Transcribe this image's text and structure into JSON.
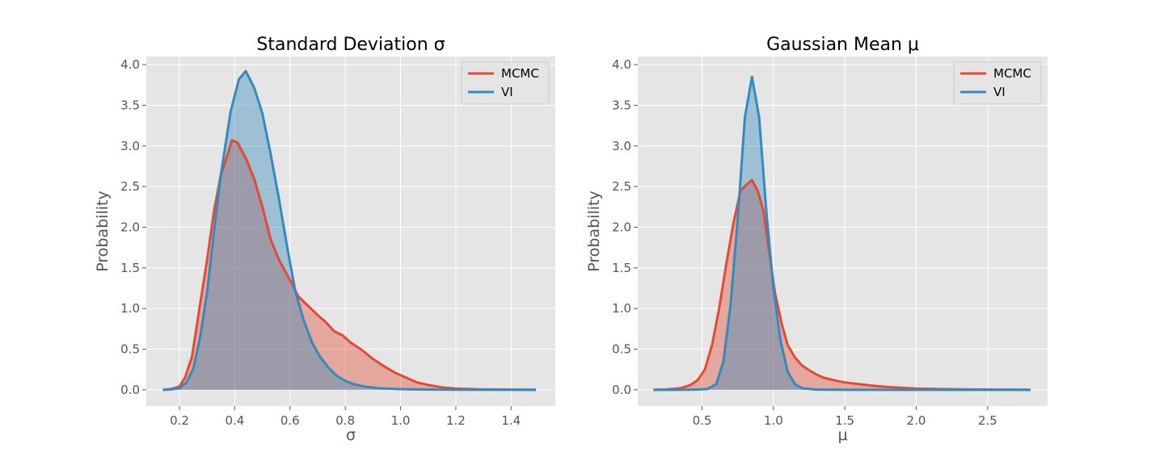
{
  "colors": {
    "mcmc": "#E24A33",
    "vi": "#348ABD",
    "plot_background": "#E5E5E5",
    "grid": "#FFFFFF"
  },
  "chart_data": [
    {
      "type": "area",
      "title": "Standard Deviation σ",
      "xlabel": "σ",
      "ylabel": "Probability",
      "xlim": [
        0.08,
        1.56
      ],
      "ylim": [
        -0.2,
        4.1
      ],
      "grid": true,
      "legend_position": "top-right",
      "x_ticks": [
        "0.2",
        "0.4",
        "0.6",
        "0.8",
        "1.0",
        "1.2",
        "1.4"
      ],
      "y_ticks": [
        "0.0",
        "0.5",
        "1.0",
        "1.5",
        "2.0",
        "2.5",
        "3.0",
        "3.5",
        "4.0"
      ],
      "series": [
        {
          "name": "MCMC",
          "color": "#E24A33",
          "points": [
            [
              0.14,
              0.0
            ],
            [
              0.17,
              0.01
            ],
            [
              0.2,
              0.04
            ],
            [
              0.22,
              0.15
            ],
            [
              0.245,
              0.4
            ],
            [
              0.27,
              0.95
            ],
            [
              0.3,
              1.6
            ],
            [
              0.325,
              2.2
            ],
            [
              0.35,
              2.65
            ],
            [
              0.375,
              2.9
            ],
            [
              0.39,
              3.07
            ],
            [
              0.41,
              3.04
            ],
            [
              0.44,
              2.85
            ],
            [
              0.47,
              2.6
            ],
            [
              0.5,
              2.25
            ],
            [
              0.53,
              1.85
            ],
            [
              0.56,
              1.6
            ],
            [
              0.6,
              1.35
            ],
            [
              0.63,
              1.15
            ],
            [
              0.66,
              1.05
            ],
            [
              0.7,
              0.92
            ],
            [
              0.73,
              0.83
            ],
            [
              0.76,
              0.72
            ],
            [
              0.79,
              0.67
            ],
            [
              0.82,
              0.58
            ],
            [
              0.86,
              0.49
            ],
            [
              0.9,
              0.38
            ],
            [
              0.94,
              0.29
            ],
            [
              0.98,
              0.21
            ],
            [
              1.02,
              0.15
            ],
            [
              1.06,
              0.09
            ],
            [
              1.1,
              0.06
            ],
            [
              1.15,
              0.03
            ],
            [
              1.2,
              0.015
            ],
            [
              1.3,
              0.005
            ],
            [
              1.4,
              0.002
            ],
            [
              1.49,
              0.0
            ]
          ]
        },
        {
          "name": "VI",
          "color": "#348ABD",
          "points": [
            [
              0.14,
              0.0
            ],
            [
              0.17,
              0.005
            ],
            [
              0.2,
              0.02
            ],
            [
              0.225,
              0.09
            ],
            [
              0.25,
              0.26
            ],
            [
              0.275,
              0.65
            ],
            [
              0.3,
              1.2
            ],
            [
              0.325,
              1.95
            ],
            [
              0.35,
              2.65
            ],
            [
              0.385,
              3.42
            ],
            [
              0.415,
              3.82
            ],
            [
              0.44,
              3.92
            ],
            [
              0.47,
              3.72
            ],
            [
              0.5,
              3.4
            ],
            [
              0.53,
              2.9
            ],
            [
              0.56,
              2.35
            ],
            [
              0.59,
              1.75
            ],
            [
              0.62,
              1.2
            ],
            [
              0.65,
              0.85
            ],
            [
              0.68,
              0.58
            ],
            [
              0.71,
              0.4
            ],
            [
              0.74,
              0.27
            ],
            [
              0.77,
              0.17
            ],
            [
              0.8,
              0.11
            ],
            [
              0.83,
              0.07
            ],
            [
              0.87,
              0.04
            ],
            [
              0.92,
              0.02
            ],
            [
              1.0,
              0.008
            ],
            [
              1.1,
              0.003
            ],
            [
              1.2,
              0.001
            ],
            [
              1.49,
              0.0
            ]
          ]
        }
      ]
    },
    {
      "type": "area",
      "title": "Gaussian Mean μ",
      "xlabel": "μ",
      "ylabel": "Probability",
      "xlim": [
        0.05,
        2.92
      ],
      "ylim": [
        -0.2,
        4.1
      ],
      "grid": true,
      "legend_position": "top-right",
      "x_ticks": [
        "0.5",
        "1.0",
        "1.5",
        "2.0",
        "2.5"
      ],
      "y_ticks": [
        "0.0",
        "0.5",
        "1.0",
        "1.5",
        "2.0",
        "2.5",
        "3.0",
        "3.5",
        "4.0"
      ],
      "series": [
        {
          "name": "MCMC",
          "color": "#E24A33",
          "points": [
            [
              0.16,
              0.0
            ],
            [
              0.25,
              0.005
            ],
            [
              0.35,
              0.02
            ],
            [
              0.42,
              0.06
            ],
            [
              0.47,
              0.12
            ],
            [
              0.52,
              0.25
            ],
            [
              0.57,
              0.55
            ],
            [
              0.62,
              1.0
            ],
            [
              0.67,
              1.55
            ],
            [
              0.72,
              2.05
            ],
            [
              0.77,
              2.45
            ],
            [
              0.81,
              2.52
            ],
            [
              0.85,
              2.58
            ],
            [
              0.89,
              2.45
            ],
            [
              0.93,
              2.2
            ],
            [
              0.97,
              1.7
            ],
            [
              1.01,
              1.2
            ],
            [
              1.06,
              0.8
            ],
            [
              1.1,
              0.55
            ],
            [
              1.15,
              0.4
            ],
            [
              1.2,
              0.3
            ],
            [
              1.25,
              0.24
            ],
            [
              1.3,
              0.19
            ],
            [
              1.35,
              0.15
            ],
            [
              1.42,
              0.12
            ],
            [
              1.5,
              0.09
            ],
            [
              1.6,
              0.07
            ],
            [
              1.7,
              0.05
            ],
            [
              1.8,
              0.035
            ],
            [
              1.9,
              0.025
            ],
            [
              2.0,
              0.015
            ],
            [
              2.2,
              0.008
            ],
            [
              2.4,
              0.004
            ],
            [
              2.6,
              0.002
            ],
            [
              2.8,
              0.0
            ]
          ]
        },
        {
          "name": "VI",
          "color": "#348ABD",
          "points": [
            [
              0.16,
              0.0
            ],
            [
              0.3,
              0.0
            ],
            [
              0.45,
              0.002
            ],
            [
              0.54,
              0.01
            ],
            [
              0.6,
              0.07
            ],
            [
              0.65,
              0.35
            ],
            [
              0.7,
              1.05
            ],
            [
              0.75,
              2.1
            ],
            [
              0.8,
              3.35
            ],
            [
              0.85,
              3.85
            ],
            [
              0.9,
              3.35
            ],
            [
              0.95,
              2.2
            ],
            [
              1.0,
              1.25
            ],
            [
              1.05,
              0.6
            ],
            [
              1.1,
              0.22
            ],
            [
              1.15,
              0.07
            ],
            [
              1.2,
              0.02
            ],
            [
              1.3,
              0.003
            ],
            [
              1.5,
              0.0
            ],
            [
              2.0,
              0.0
            ],
            [
              2.8,
              0.0
            ]
          ]
        }
      ]
    }
  ]
}
